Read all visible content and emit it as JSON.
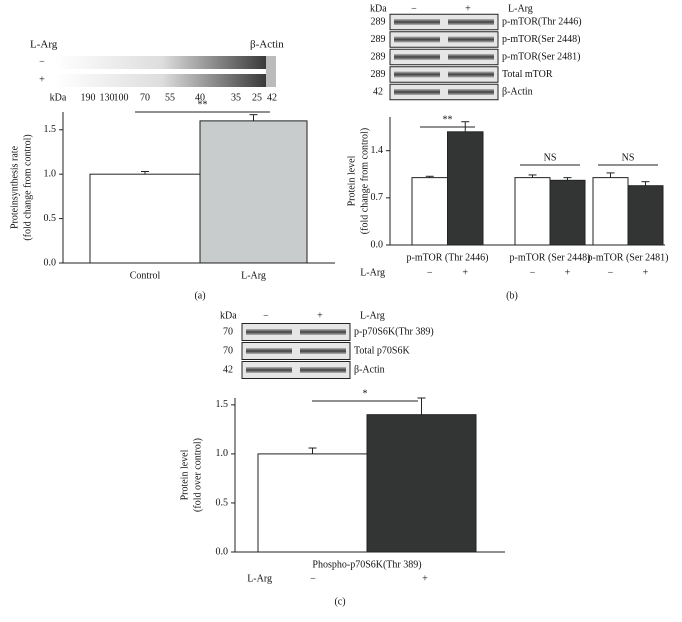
{
  "chart_data": [
    {
      "type": "bar",
      "panel": "(a)",
      "ylabel": [
        "Proteinsynthesis rate",
        "(fold change from control)"
      ],
      "categories": [
        "Control",
        "L-Arg"
      ],
      "values": [
        1.0,
        1.6
      ],
      "errors": [
        0.03,
        0.07
      ],
      "colors": [
        "#ffffff",
        "#c8cccc"
      ],
      "ylim": [
        0,
        1.7
      ],
      "yticks": [
        {
          "value": 0,
          "label": "0.0"
        },
        {
          "value": 0.5,
          "label": "0.5"
        },
        {
          "value": 1,
          "label": "1.0"
        },
        {
          "value": 1.5,
          "label": "1.5"
        }
      ],
      "annotations": [
        "**"
      ],
      "blot": {
        "treatment": "L-Arg",
        "protein": "β-Actin",
        "lanes": [
          "−",
          "+"
        ],
        "kda_label": "kDa",
        "markers": [
          190,
          130,
          100,
          70,
          55,
          40,
          35,
          25,
          42
        ]
      }
    },
    {
      "type": "grouped_bar",
      "panel": "(b)",
      "ylabel": [
        "Protein level",
        "(fold change from control)"
      ],
      "categories": [
        "p-mTOR (Thr 2446)",
        "p-mTOR (Ser 2448)",
        "p-mTOR (Ser 2481)"
      ],
      "series": [
        {
          "name": "−",
          "color": "#ffffff",
          "values": [
            1.0,
            1.0,
            1.0
          ],
          "errors": [
            0.02,
            0.04,
            0.07
          ]
        },
        {
          "name": "+",
          "color": "#333535",
          "values": [
            1.68,
            0.96,
            0.88
          ],
          "errors": [
            0.15,
            0.04,
            0.06
          ]
        }
      ],
      "ylim": [
        0,
        1.9
      ],
      "yticks": [
        {
          "value": 0,
          "label": "0.0"
        },
        {
          "value": 0.7,
          "label": "0.7"
        },
        {
          "value": 1.4,
          "label": "1.4"
        }
      ],
      "annotations": [
        "**",
        "NS",
        "NS"
      ],
      "blot": {
        "treatment": "L-Arg",
        "lanes": [
          "−",
          "+"
        ],
        "kda_label": "kDa",
        "rows": [
          {
            "kda": 289,
            "label": "p-mTOR(Thr 2446)"
          },
          {
            "kda": 289,
            "label": "p-mTOR(Ser 2448)"
          },
          {
            "kda": 289,
            "label": "p-mTOR(Ser 2481)"
          },
          {
            "kda": 289,
            "label": "Total mTOR"
          },
          {
            "kda": 42,
            "label": "β-Actin"
          }
        ]
      }
    },
    {
      "type": "grouped_bar",
      "panel": "(c)",
      "ylabel": [
        "Protein level",
        "(fold over control)"
      ],
      "categories": [
        "Phospho-p70S6K(Thr 389)"
      ],
      "series": [
        {
          "name": "−",
          "color": "#ffffff",
          "values": [
            1.0
          ],
          "errors": [
            0.06
          ]
        },
        {
          "name": "+",
          "color": "#333535",
          "values": [
            1.4
          ],
          "errors": [
            0.17
          ]
        }
      ],
      "ylim": [
        0,
        1.57
      ],
      "yticks": [
        {
          "value": 0,
          "label": "0.0"
        },
        {
          "value": 0.5,
          "label": "0.5"
        },
        {
          "value": 1,
          "label": "1.0"
        },
        {
          "value": 1.5,
          "label": "1.5"
        }
      ],
      "annotations": [
        "*"
      ],
      "blot": {
        "treatment": "L-Arg",
        "lanes": [
          "−",
          "+"
        ],
        "kda_label": "kDa",
        "rows": [
          {
            "kda": 70,
            "label": "p-p70S6K(Thr 389)"
          },
          {
            "kda": 70,
            "label": "Total p70S6K"
          },
          {
            "kda": 42,
            "label": "β-Actin"
          }
        ]
      }
    }
  ]
}
